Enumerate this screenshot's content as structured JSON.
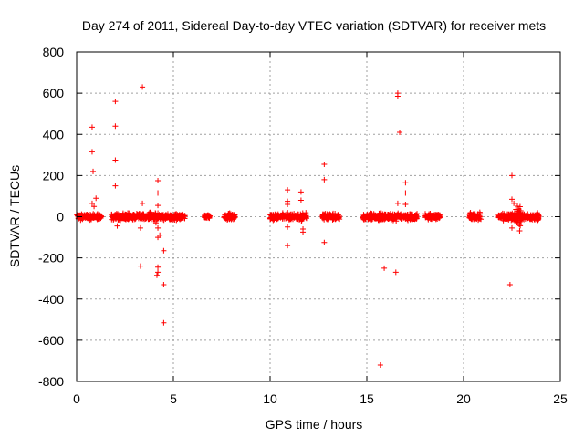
{
  "chart_data": {
    "type": "scatter",
    "title": "Day 274 of 2011, Sidereal Day-to-day VTEC variation (SDTVAR) for receiver mets",
    "xlabel": "GPS time / hours",
    "ylabel": "SDTVAR / TECUs",
    "xlim": [
      0,
      25
    ],
    "ylim": [
      -800,
      800
    ],
    "xticks": [
      0,
      5,
      10,
      15,
      20,
      25
    ],
    "yticks": [
      -800,
      -600,
      -400,
      -200,
      0,
      200,
      400,
      600,
      800
    ],
    "grid": true,
    "marker": "+",
    "color": "#ff0000",
    "dense_bands": [
      {
        "start": 0.0,
        "end": 1.3,
        "amp": 10
      },
      {
        "start": 1.8,
        "end": 5.6,
        "amp": 12
      },
      {
        "start": 6.6,
        "end": 6.9,
        "amp": 8
      },
      {
        "start": 7.6,
        "end": 8.2,
        "amp": 12
      },
      {
        "start": 10.0,
        "end": 11.9,
        "amp": 12
      },
      {
        "start": 12.7,
        "end": 13.6,
        "amp": 10
      },
      {
        "start": 14.8,
        "end": 17.6,
        "amp": 12
      },
      {
        "start": 18.0,
        "end": 18.8,
        "amp": 9
      },
      {
        "start": 20.3,
        "end": 20.9,
        "amp": 13
      },
      {
        "start": 21.8,
        "end": 23.9,
        "amp": 12
      },
      {
        "start": 22.7,
        "end": 23.0,
        "amp": 40
      }
    ],
    "outliers": [
      {
        "x": 0.8,
        "y": 435
      },
      {
        "x": 0.8,
        "y": 315
      },
      {
        "x": 0.85,
        "y": 220
      },
      {
        "x": 0.8,
        "y": 65
      },
      {
        "x": 0.9,
        "y": 50
      },
      {
        "x": 1.0,
        "y": 90
      },
      {
        "x": 2.0,
        "y": 560
      },
      {
        "x": 2.0,
        "y": 440
      },
      {
        "x": 2.0,
        "y": 275
      },
      {
        "x": 2.0,
        "y": 150
      },
      {
        "x": 2.1,
        "y": -45
      },
      {
        "x": 3.4,
        "y": 630
      },
      {
        "x": 3.3,
        "y": -240
      },
      {
        "x": 3.4,
        "y": 65
      },
      {
        "x": 3.3,
        "y": -55
      },
      {
        "x": 4.2,
        "y": 175
      },
      {
        "x": 4.2,
        "y": 115
      },
      {
        "x": 4.2,
        "y": 55
      },
      {
        "x": 4.1,
        "y": -30
      },
      {
        "x": 4.2,
        "y": -55
      },
      {
        "x": 4.3,
        "y": -90
      },
      {
        "x": 4.2,
        "y": -100
      },
      {
        "x": 4.2,
        "y": -245
      },
      {
        "x": 4.2,
        "y": -270
      },
      {
        "x": 4.15,
        "y": -285
      },
      {
        "x": 4.5,
        "y": -165
      },
      {
        "x": 4.5,
        "y": -330
      },
      {
        "x": 4.5,
        "y": -515
      },
      {
        "x": 10.9,
        "y": 130
      },
      {
        "x": 10.9,
        "y": 75
      },
      {
        "x": 10.9,
        "y": 60
      },
      {
        "x": 10.9,
        "y": -50
      },
      {
        "x": 10.9,
        "y": -140
      },
      {
        "x": 11.6,
        "y": 120
      },
      {
        "x": 11.6,
        "y": 80
      },
      {
        "x": 11.7,
        "y": -60
      },
      {
        "x": 11.7,
        "y": -75
      },
      {
        "x": 12.8,
        "y": 255
      },
      {
        "x": 12.8,
        "y": 180
      },
      {
        "x": 12.8,
        "y": -125
      },
      {
        "x": 15.7,
        "y": -720
      },
      {
        "x": 15.9,
        "y": -250
      },
      {
        "x": 16.5,
        "y": -270
      },
      {
        "x": 16.6,
        "y": 600
      },
      {
        "x": 16.6,
        "y": 585
      },
      {
        "x": 16.7,
        "y": 410
      },
      {
        "x": 16.6,
        "y": 65
      },
      {
        "x": 17.0,
        "y": 165
      },
      {
        "x": 17.0,
        "y": 115
      },
      {
        "x": 17.0,
        "y": 60
      },
      {
        "x": 22.5,
        "y": 200
      },
      {
        "x": 22.5,
        "y": 85
      },
      {
        "x": 22.6,
        "y": 65
      },
      {
        "x": 22.4,
        "y": -330
      },
      {
        "x": 22.5,
        "y": -55
      }
    ]
  }
}
